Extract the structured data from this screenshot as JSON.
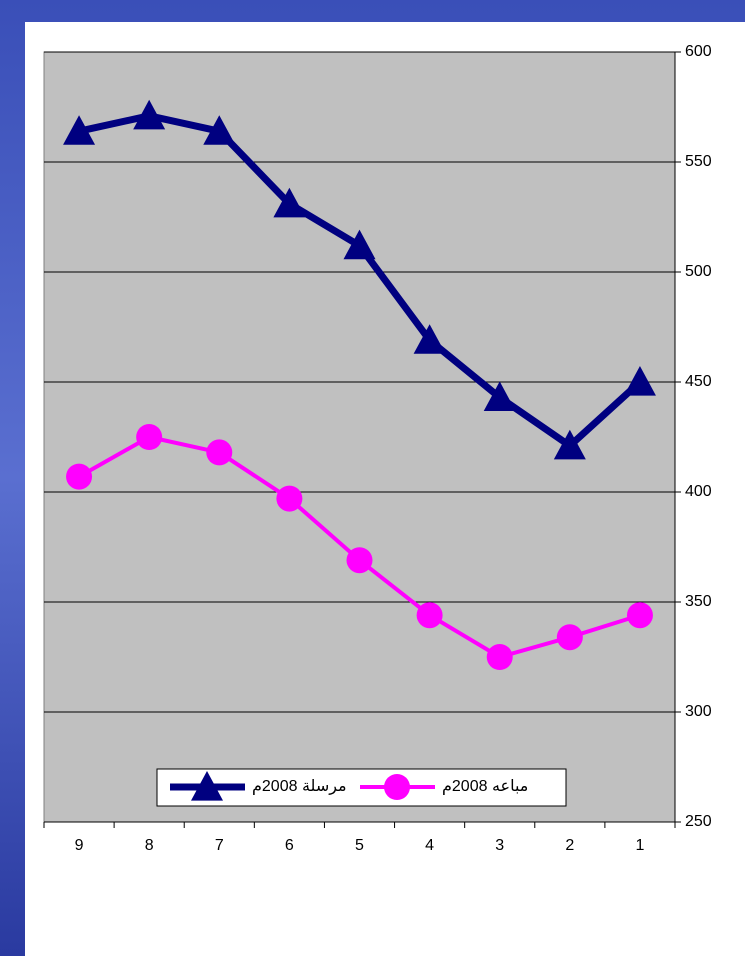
{
  "chart_data": {
    "type": "line",
    "categories": [
      "9",
      "8",
      "7",
      "6",
      "5",
      "4",
      "3",
      "2",
      "1"
    ],
    "series": [
      {
        "name": "مرسلة 2008م",
        "color": "#000080",
        "marker": "triangle",
        "values": [
          564,
          571,
          564,
          531,
          512,
          469,
          443,
          421,
          450
        ]
      },
      {
        "name": "مباعه 2008م",
        "color": "#ff00ff",
        "marker": "circle",
        "values": [
          407,
          425,
          418,
          397,
          369,
          344,
          325,
          334,
          344
        ]
      }
    ],
    "ylim": [
      250,
      600
    ],
    "yticks": [
      250,
      300,
      350,
      400,
      450,
      500,
      550,
      600
    ],
    "y_axis_side": "right",
    "grid": true,
    "legend": "bottom"
  }
}
